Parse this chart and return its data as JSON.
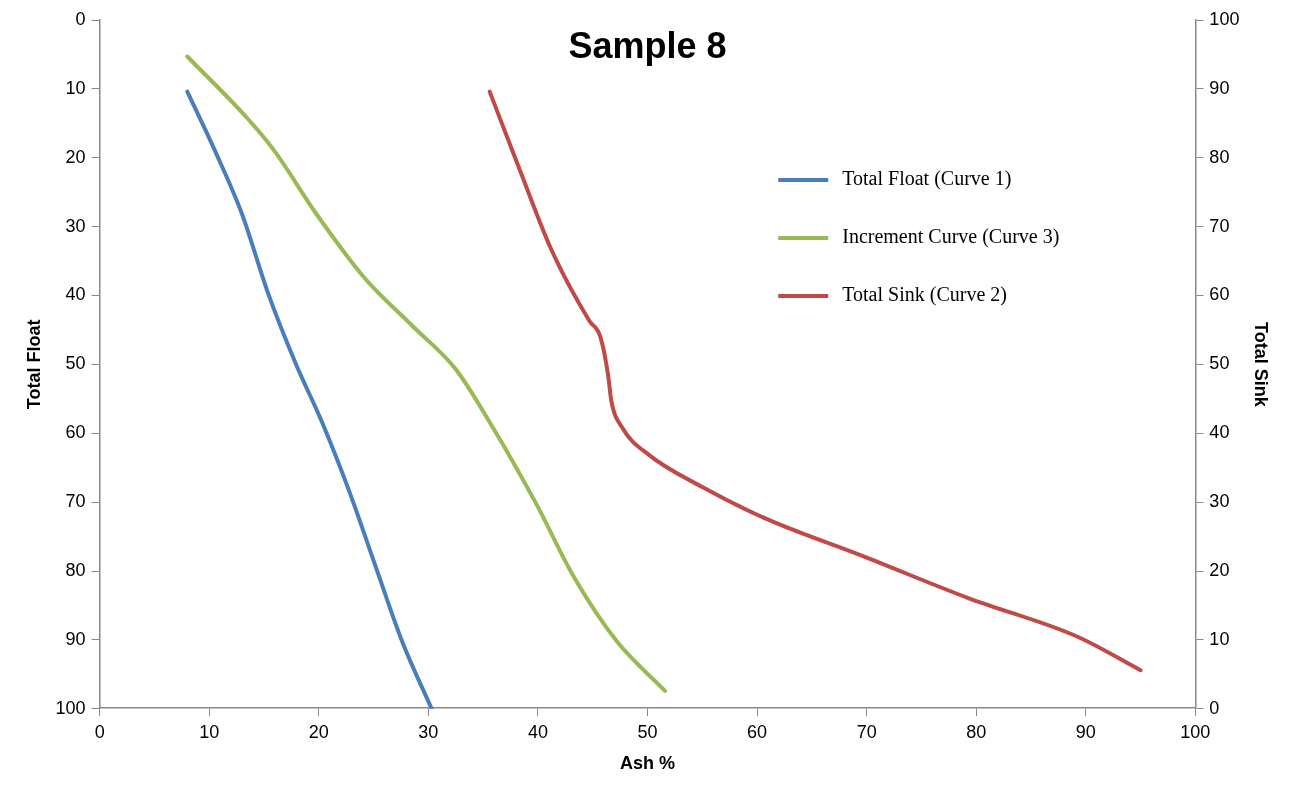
{
  "chart_data": {
    "type": "line",
    "title": "Sample 8",
    "xlabel": "Ash %",
    "ylabel": "Total Float",
    "y2label": "Total Sink",
    "xlim": [
      0,
      100
    ],
    "xticks": [
      0,
      10,
      20,
      30,
      40,
      50,
      60,
      70,
      80,
      90,
      100
    ],
    "ylim": [
      100,
      0
    ],
    "yticks": [
      0,
      10,
      20,
      30,
      40,
      50,
      60,
      70,
      80,
      90,
      100
    ],
    "y2lim": [
      0,
      100
    ],
    "y2ticks": [
      0,
      10,
      20,
      30,
      40,
      50,
      60,
      70,
      80,
      90,
      100
    ],
    "grid": false,
    "legend": "top right",
    "marker": "none",
    "line_style": "solid",
    "series": [
      {
        "name": "Total Float (Curve 1)",
        "color": "#4a7ebb",
        "x": [
          8.0,
          10.5,
          13.0,
          15.4,
          17.9,
          20.3,
          22.8,
          25.2,
          27.6,
          30.3
        ],
        "values": [
          10.4,
          18.9,
          28.2,
          39.8,
          49.9,
          58.4,
          68.5,
          79.4,
          90.2,
          100
        ]
      },
      {
        "name": "Increment Curve (Curve 3)",
        "color": "#98b954",
        "x": [
          8.0,
          13.5,
          15.9,
          19.8,
          24.2,
          28.6,
          32.5,
          35.9,
          39.8,
          43.3,
          47.2,
          51.6
        ],
        "values": [
          5.3,
          14.3,
          18.9,
          28.2,
          37.5,
          44.5,
          50.7,
          59.2,
          70.1,
          80.9,
          90.2,
          97.4
        ]
      },
      {
        "name": "Total Sink (Curve 2)",
        "color": "#be4b48",
        "axis": "y2",
        "x": [
          35.6,
          38.4,
          41.3,
          44.7,
          45.7,
          46.4,
          46.7,
          47.7,
          50.1,
          55.0,
          60.8,
          69.6,
          79.4,
          89.2,
          95.0
        ],
        "values": [
          89.6,
          78.0,
          66.4,
          56.3,
          54.0,
          48.5,
          44.7,
          40.8,
          36.9,
          32.2,
          27.6,
          22.2,
          16.0,
          10.5,
          5.6
        ]
      }
    ]
  }
}
